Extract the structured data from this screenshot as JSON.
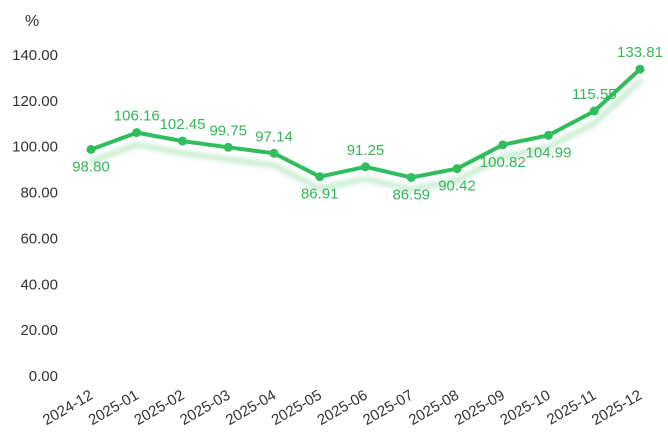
{
  "chart_data": {
    "type": "line",
    "title": "",
    "ylabel": "%",
    "xlabel": "",
    "categories": [
      "2024-12",
      "2025-01",
      "2025-02",
      "2025-03",
      "2025-04",
      "2025-05",
      "2025-06",
      "2025-07",
      "2025-08",
      "2025-09",
      "2025-10",
      "2025-11",
      "2025-12"
    ],
    "series": [
      {
        "values": [
          98.8,
          106.16,
          102.45,
          99.75,
          97.14,
          86.91,
          91.25,
          86.59,
          90.42,
          100.82,
          104.99,
          115.55,
          133.81
        ],
        "labels": [
          "98.80",
          "106.16",
          "102.45",
          "99.75",
          "97.14",
          "86.91",
          "91.25",
          "86.59",
          "90.42",
          "100.82",
          "104.99",
          "115.55",
          "133.81"
        ]
      }
    ],
    "label_positions": [
      "below",
      "above",
      "above",
      "above",
      "above",
      "below",
      "above",
      "below",
      "below",
      "below",
      "below",
      "above",
      "above"
    ],
    "ylim": [
      0,
      140
    ],
    "yticks": [
      0,
      20,
      40,
      60,
      80,
      100,
      120,
      140
    ],
    "ytick_labels": [
      "0.00",
      "20.00",
      "40.00",
      "60.00",
      "80.00",
      "100.00",
      "120.00",
      "140.00"
    ],
    "grid": false,
    "legend": "none",
    "colors": {
      "line": "#2fbd5d",
      "label": "#34b658",
      "shadow": "#cdeed5",
      "text": "#333333"
    }
  }
}
